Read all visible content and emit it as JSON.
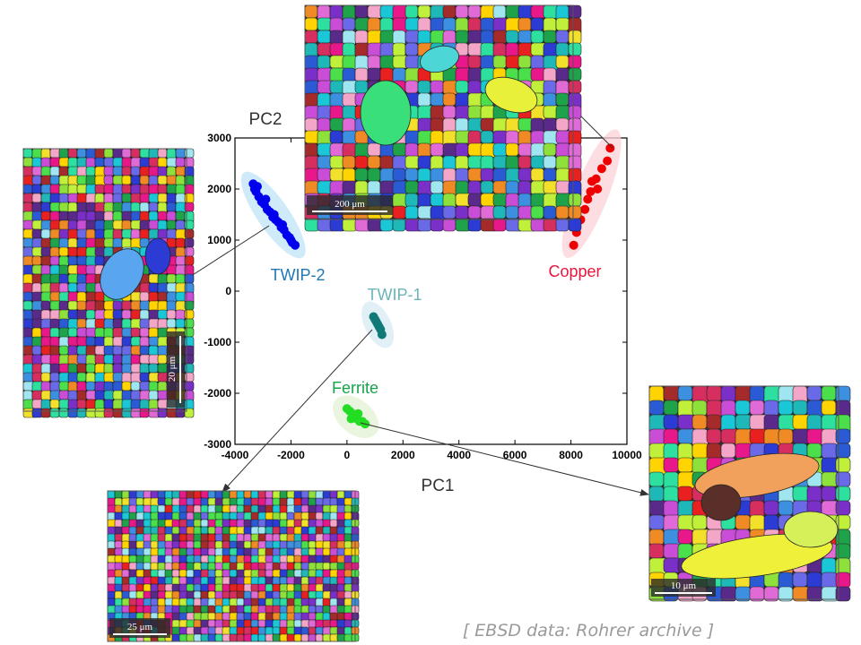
{
  "chart_data": {
    "type": "scatter",
    "xlabel": "PC1",
    "ylabel": "PC2",
    "xlim": [
      -4000,
      10000
    ],
    "ylim": [
      -3000,
      3000
    ],
    "x_ticks": [
      -4000,
      -2000,
      0,
      2000,
      4000,
      6000,
      8000,
      10000
    ],
    "y_ticks": [
      3000,
      2000,
      1000,
      0,
      -1000,
      -2000,
      -3000
    ],
    "x_tick_labels": [
      "-4000",
      "-2000",
      "0",
      "2000",
      "4000",
      "6000",
      "8000",
      "10000"
    ],
    "y_tick_labels": [
      "3000",
      "2000",
      "1000",
      "0",
      "-1000",
      "-2000",
      "-3000"
    ],
    "grid": false,
    "series": [
      {
        "name": "TWIP-2",
        "color": "#0000ee",
        "label_color": "#1f78b4",
        "halo_color": "#bfe3f7",
        "x": [
          -3350,
          -3300,
          -3250,
          -3150,
          -3050,
          -2950,
          -2850,
          -2750,
          -2650,
          -2550,
          -2450,
          -2350,
          -2250,
          -2150,
          -2050,
          -1950,
          -1850,
          -3200,
          -2900,
          -2600,
          -2300,
          -2000
        ],
        "y": [
          2100,
          2000,
          1950,
          1850,
          1750,
          1700,
          1600,
          1550,
          1450,
          1400,
          1350,
          1250,
          1200,
          1100,
          1050,
          950,
          900,
          2050,
          1800,
          1500,
          1300,
          1000
        ]
      },
      {
        "name": "Copper",
        "color": "#ee0000",
        "label_color": "#e8163c",
        "halo_color": "#fbd3d8",
        "x": [
          9400,
          9300,
          9100,
          8900,
          8950,
          8750,
          8700,
          8600,
          8500,
          8350,
          8200,
          8100
        ],
        "y": [
          2800,
          2550,
          2400,
          2200,
          2000,
          2150,
          1950,
          1800,
          1600,
          1400,
          1150,
          900
        ]
      },
      {
        "name": "TWIP-1",
        "color": "#117a78",
        "label_color": "#6bb5b8",
        "halo_color": "#d6ebf3",
        "x": [
          950,
          1000,
          1050,
          1100,
          1150,
          1200,
          1250
        ],
        "y": [
          -500,
          -550,
          -600,
          -650,
          -700,
          -750,
          -850
        ]
      },
      {
        "name": "Ferrite",
        "color": "#22dd22",
        "label_color": "#16a34a",
        "halo_color": "#e3f2d5",
        "x": [
          0,
          100,
          200,
          300,
          350,
          450,
          550,
          650,
          150,
          400
        ],
        "y": [
          -2300,
          -2350,
          -2400,
          -2450,
          -2500,
          -2550,
          -2550,
          -2600,
          -2500,
          -2400
        ]
      }
    ]
  },
  "micrographs": [
    {
      "name": "copper-micrograph",
      "scale_label": "200 μm"
    },
    {
      "name": "twip2-micrograph",
      "scale_label": "20 μm"
    },
    {
      "name": "twip1-micrograph",
      "scale_label": "25 μm"
    },
    {
      "name": "ferrite-micrograph",
      "scale_label": "10 μm"
    }
  ],
  "source_note": "[ EBSD data: Rohrer archive ]"
}
